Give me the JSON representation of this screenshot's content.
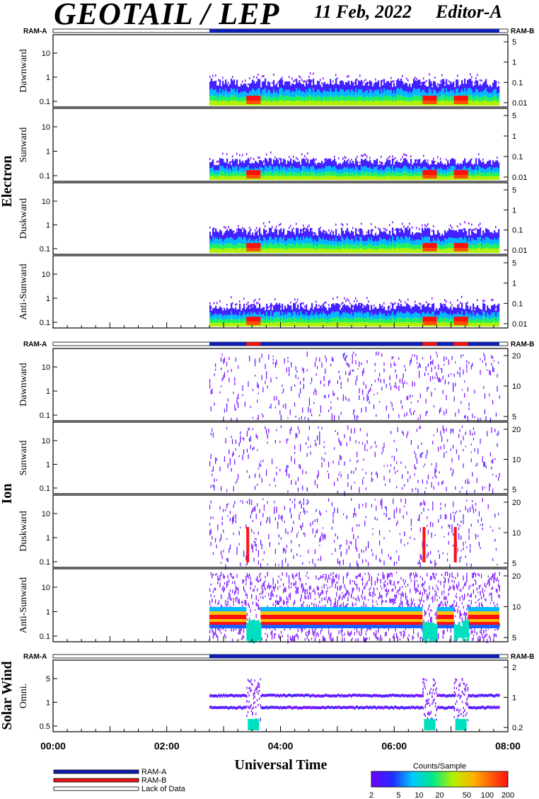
{
  "header": {
    "title": "GEOTAIL / LEP",
    "date": "11 Feb, 2022",
    "editor": "Editor-A"
  },
  "ram_labels": {
    "left": "RAM-A",
    "right": "RAM-B"
  },
  "groups": {
    "electron": "Electron",
    "ion": "Ion",
    "solar_wind": "Solar Wind"
  },
  "colors": {
    "ram_a": "#0b1fb4",
    "ram_b": "#ee1111",
    "lack": "#ffffff"
  },
  "chart_data": {
    "type": "heatmap",
    "xlabel": "Universal Time",
    "x_ticks": [
      "00:00",
      "02:00",
      "04:00",
      "06:00",
      "08:00"
    ],
    "xlim_hours": [
      0,
      8
    ],
    "data_coverage_hours": [
      2.75,
      7.85
    ],
    "ram_b_intervals_hours": {
      "ion": [
        [
          3.4,
          3.65
        ],
        [
          6.5,
          6.75
        ],
        [
          7.05,
          7.3
        ]
      ]
    },
    "panels": [
      {
        "group": "electron",
        "label": "Dawnward",
        "left_ticks": [
          "10",
          "1",
          "0.1"
        ],
        "right_ticks": [
          "5",
          "1",
          "0.1",
          "0.01"
        ]
      },
      {
        "group": "electron",
        "label": "Sunward",
        "left_ticks": [
          "10",
          "1",
          "0.1"
        ],
        "right_ticks": [
          "5",
          "1",
          "0.1",
          "0.01"
        ]
      },
      {
        "group": "electron",
        "label": "Duskward",
        "left_ticks": [
          "10",
          "1",
          "0.1"
        ],
        "right_ticks": [
          "5",
          "1",
          "0.1",
          "0.01"
        ]
      },
      {
        "group": "electron",
        "label": "Anti-Sunward",
        "left_ticks": [
          "10",
          "1",
          "0.1"
        ],
        "right_ticks": [
          "5",
          "1",
          "0.1",
          "0.01"
        ]
      },
      {
        "group": "ion",
        "label": "Dawnward",
        "left_ticks": [
          "10",
          "1",
          "0.1"
        ],
        "right_ticks": [
          "20",
          "10",
          "5"
        ]
      },
      {
        "group": "ion",
        "label": "Sunward",
        "left_ticks": [
          "10",
          "1",
          "0.1"
        ],
        "right_ticks": [
          "20",
          "10",
          "5"
        ]
      },
      {
        "group": "ion",
        "label": "Duskward",
        "left_ticks": [
          "10",
          "1",
          "0.1"
        ],
        "right_ticks": [
          "20",
          "10",
          "5"
        ]
      },
      {
        "group": "ion",
        "label": "Anti-Sunward",
        "left_ticks": [
          "10",
          "1",
          "0.1"
        ],
        "right_ticks": [
          "20",
          "10",
          "5"
        ]
      },
      {
        "group": "solar_wind",
        "label": "Omni.",
        "left_ticks": [
          "5",
          "1",
          "0.5"
        ],
        "right_ticks": [
          "2",
          "1",
          "0.2"
        ]
      }
    ],
    "legend": [
      {
        "key": "ram_a",
        "label": "RAM-A"
      },
      {
        "key": "ram_b",
        "label": "RAM-B"
      },
      {
        "key": "lack",
        "label": "Lack of Data"
      }
    ],
    "colorbar": {
      "title": "Counts/Sample",
      "ticks": [
        "2",
        "5",
        "10",
        "20",
        "50",
        "100",
        "200"
      ],
      "values": [
        2,
        5,
        10,
        20,
        50,
        100,
        200
      ],
      "scale": "log"
    }
  }
}
